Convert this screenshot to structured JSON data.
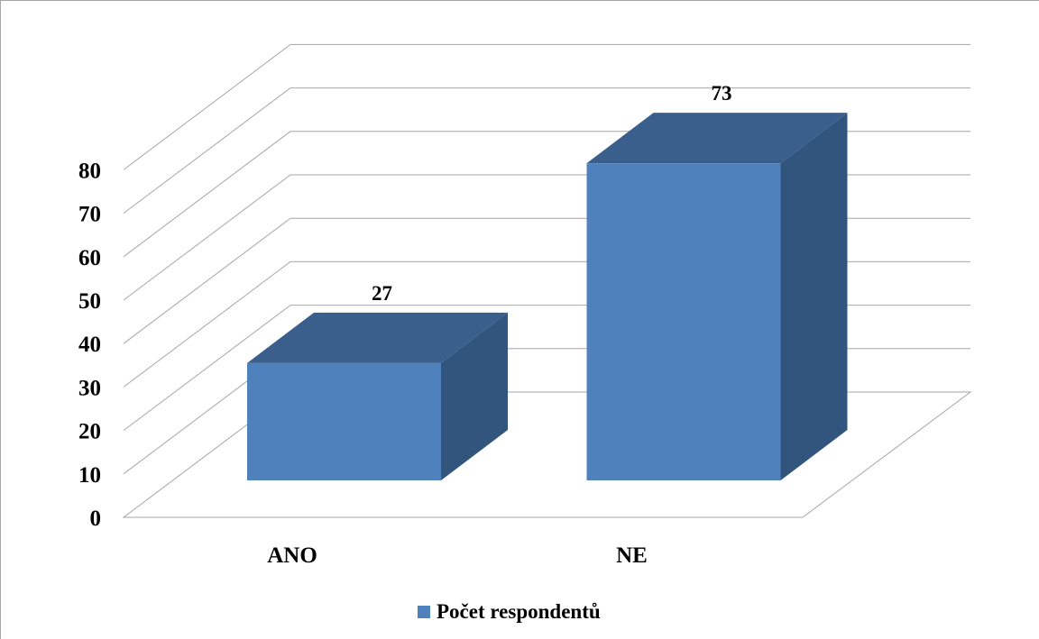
{
  "chart_data": {
    "type": "bar",
    "style": "3d-column",
    "categories": [
      "ANO",
      "NE"
    ],
    "series": [
      {
        "name": "Počet respondentů",
        "values": [
          27,
          73
        ],
        "color": "#4f81bd"
      }
    ],
    "data_labels": [
      "27",
      "73"
    ],
    "yticks": [
      "0",
      "10",
      "20",
      "30",
      "40",
      "50",
      "60",
      "70",
      "80"
    ],
    "ylim": [
      0,
      80
    ],
    "grid": true,
    "legend": "bottom",
    "title": "",
    "xlabel": "",
    "ylabel": ""
  }
}
